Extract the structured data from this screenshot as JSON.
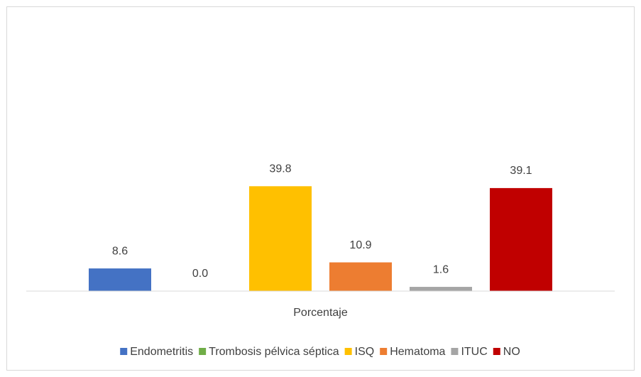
{
  "chart_data": {
    "type": "bar",
    "categories": [
      "Porcentaje"
    ],
    "series": [
      {
        "name": "Endometritis",
        "color": "#4472c4",
        "values": [
          8.6
        ],
        "value_labels": [
          "8.6"
        ]
      },
      {
        "name": "Trombosis pélvica séptica",
        "color": "#70ad47",
        "values": [
          0
        ],
        "value_labels": [
          "0.0"
        ]
      },
      {
        "name": "ISQ",
        "color": "#ffc000",
        "values": [
          39.8
        ],
        "value_labels": [
          "39.8"
        ]
      },
      {
        "name": "Hematoma",
        "color": "#ed7d31",
        "values": [
          10.9
        ],
        "value_labels": [
          "10.9"
        ]
      },
      {
        "name": "ITUC",
        "color": "#a5a5a5",
        "values": [
          1.6
        ],
        "value_labels": [
          "1.6"
        ]
      },
      {
        "name": "NO",
        "color": "#c00000",
        "values": [
          39.1
        ],
        "value_labels": [
          "39.1"
        ]
      }
    ],
    "ylim": [
      0,
      45
    ],
    "legend": "bottom"
  }
}
